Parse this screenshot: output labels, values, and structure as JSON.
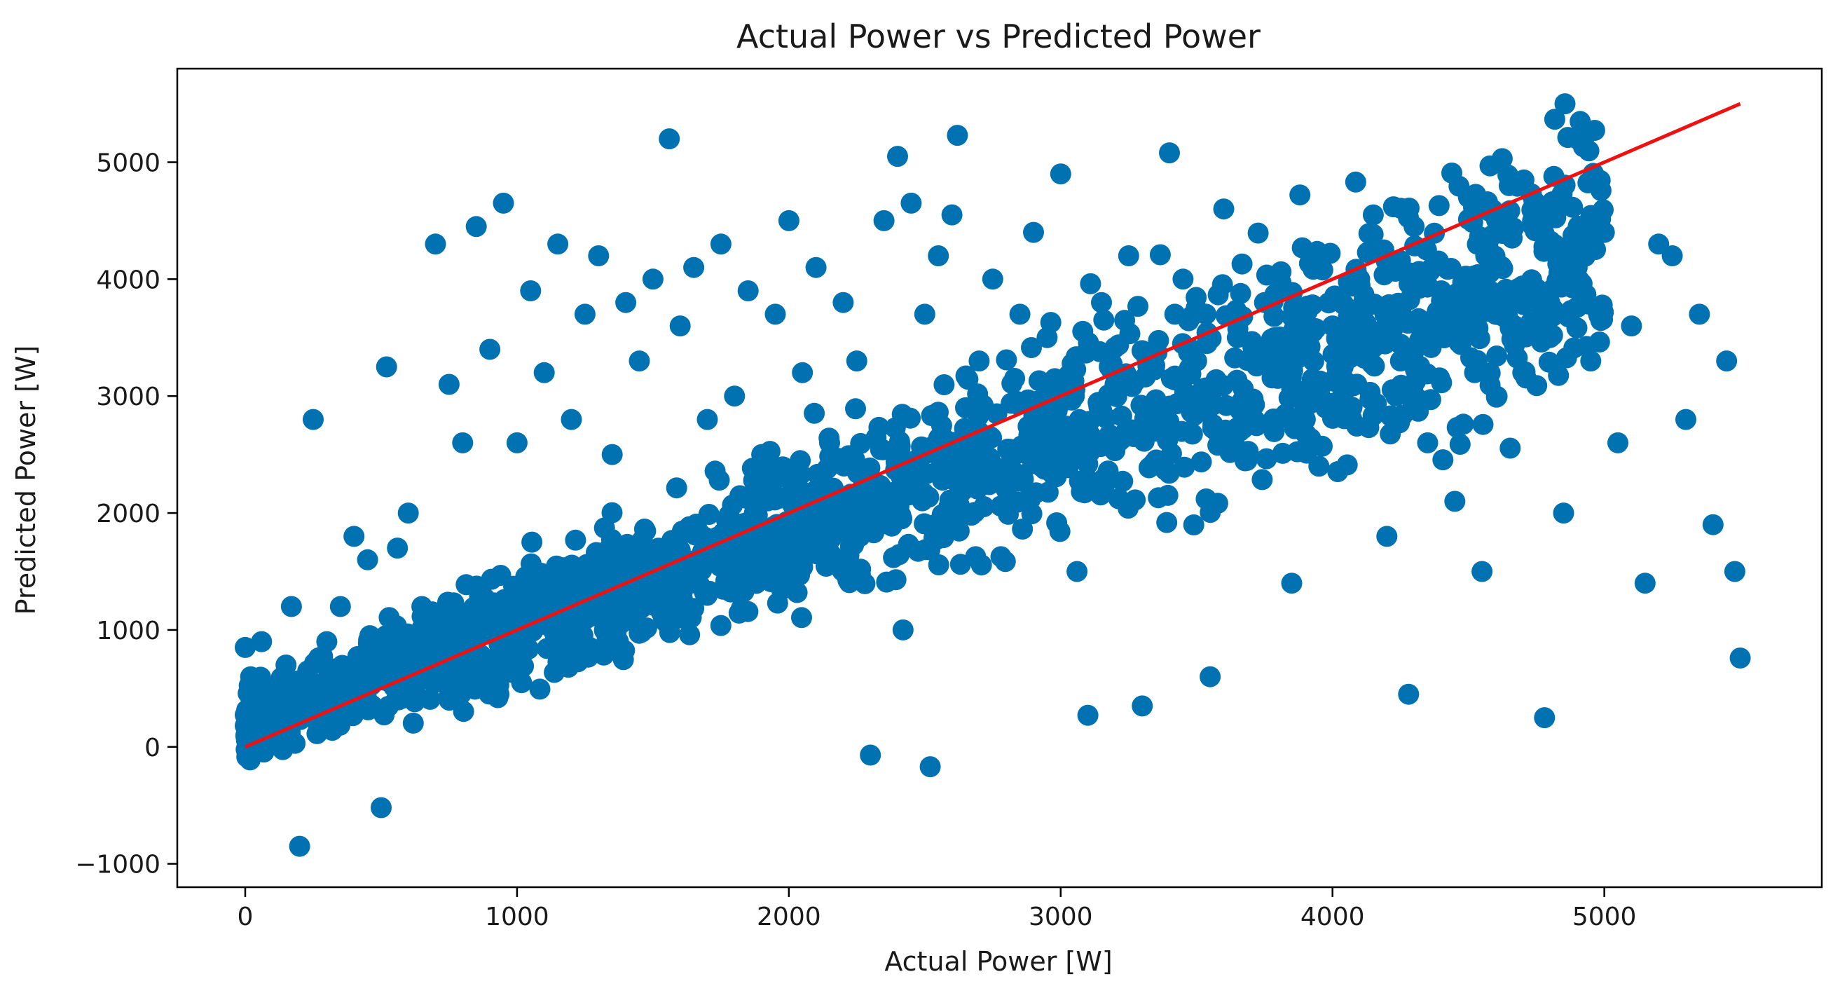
{
  "chart_data": {
    "type": "scatter",
    "title": "Actual Power vs Predicted Power",
    "xlabel": "Actual Power [W]",
    "ylabel": "Predicted Power [W]",
    "xlim": [
      -250,
      5800
    ],
    "ylim": [
      -1200,
      5800
    ],
    "xticks": [
      0,
      1000,
      2000,
      3000,
      4000,
      5000
    ],
    "yticks": [
      -1000,
      0,
      1000,
      2000,
      3000,
      4000,
      5000
    ],
    "xtick_labels": [
      "0",
      "1000",
      "2000",
      "3000",
      "4000",
      "5000"
    ],
    "ytick_labels": [
      "−1000",
      "0",
      "1000",
      "2000",
      "3000",
      "4000",
      "5000"
    ],
    "grid": false,
    "colors": {
      "points": "#0072b2",
      "fit_line": "#ee1111"
    },
    "series": [
      {
        "kind": "scatter",
        "x": [
          0,
          10,
          20,
          30,
          40,
          50,
          60,
          80,
          100,
          120,
          150,
          170,
          200,
          230,
          250,
          270,
          300,
          350,
          400,
          450,
          500,
          520,
          560,
          600,
          650,
          700,
          750,
          800,
          850,
          900,
          950,
          1000,
          1050,
          1100,
          1150,
          1200,
          1250,
          1300,
          1350,
          1400,
          1450,
          1500,
          1560,
          1600,
          1650,
          1700,
          1750,
          1800,
          1850,
          1900,
          1950,
          2000,
          2050,
          2100,
          2150,
          2200,
          2250,
          2300,
          2350,
          2400,
          2420,
          2450,
          2500,
          2520,
          2550,
          2600,
          2620,
          2650,
          2700,
          2750,
          2800,
          2850,
          2900,
          2950,
          3000,
          3050,
          3060,
          3100,
          3150,
          3200,
          3250,
          3300,
          3350,
          3400,
          3420,
          3450,
          3500,
          3550,
          3600,
          3650,
          3700,
          3750,
          3800,
          3850,
          3880,
          3900,
          3950,
          4000,
          4050,
          4100,
          4150,
          4200,
          4250,
          4280,
          4300,
          4350,
          4400,
          4450,
          4500,
          4550,
          4600,
          4650,
          4700,
          4750,
          4780,
          4800,
          4850,
          4900,
          4950,
          5000,
          5050,
          5100,
          5150,
          5200,
          5250,
          5300,
          5350,
          5400,
          5450,
          5480,
          5500
        ],
        "y": [
          850,
          150,
          600,
          400,
          300,
          200,
          900,
          350,
          500,
          250,
          700,
          1200,
          -850,
          650,
          2800,
          400,
          900,
          1200,
          1800,
          1600,
          -520,
          3250,
          1700,
          2000,
          1200,
          4300,
          3100,
          2600,
          4450,
          3400,
          4650,
          2600,
          3900,
          3200,
          4300,
          2800,
          3700,
          4200,
          2500,
          3800,
          3300,
          4000,
          5200,
          3600,
          4100,
          2800,
          4300,
          3000,
          3900,
          2500,
          3700,
          4500,
          3200,
          4100,
          2600,
          3800,
          3300,
          -70,
          4500,
          5050,
          1000,
          4650,
          3700,
          -170,
          4200,
          4550,
          5230,
          2900,
          3300,
          4000,
          2200,
          3700,
          4400,
          3500,
          4900,
          3000,
          1500,
          270,
          3800,
          3100,
          4200,
          350,
          2700,
          5080,
          3700,
          4000,
          3300,
          600,
          4600,
          3500,
          2900,
          3800,
          3300,
          1400,
          4720,
          2800,
          2400,
          3600,
          3100,
          4000,
          4550,
          1800,
          3300,
          450,
          4450,
          2600,
          3900,
          2100,
          4700,
          1500,
          3700,
          4800,
          3200,
          4600,
          250,
          3500,
          2000,
          4100,
          3300,
          4400,
          2600,
          3600,
          1400,
          4300,
          4200,
          2800,
          3700,
          1900,
          3300,
          1500,
          760
        ]
      },
      {
        "kind": "line",
        "x": [
          0,
          5500
        ],
        "y": [
          0,
          5500
        ]
      }
    ]
  }
}
